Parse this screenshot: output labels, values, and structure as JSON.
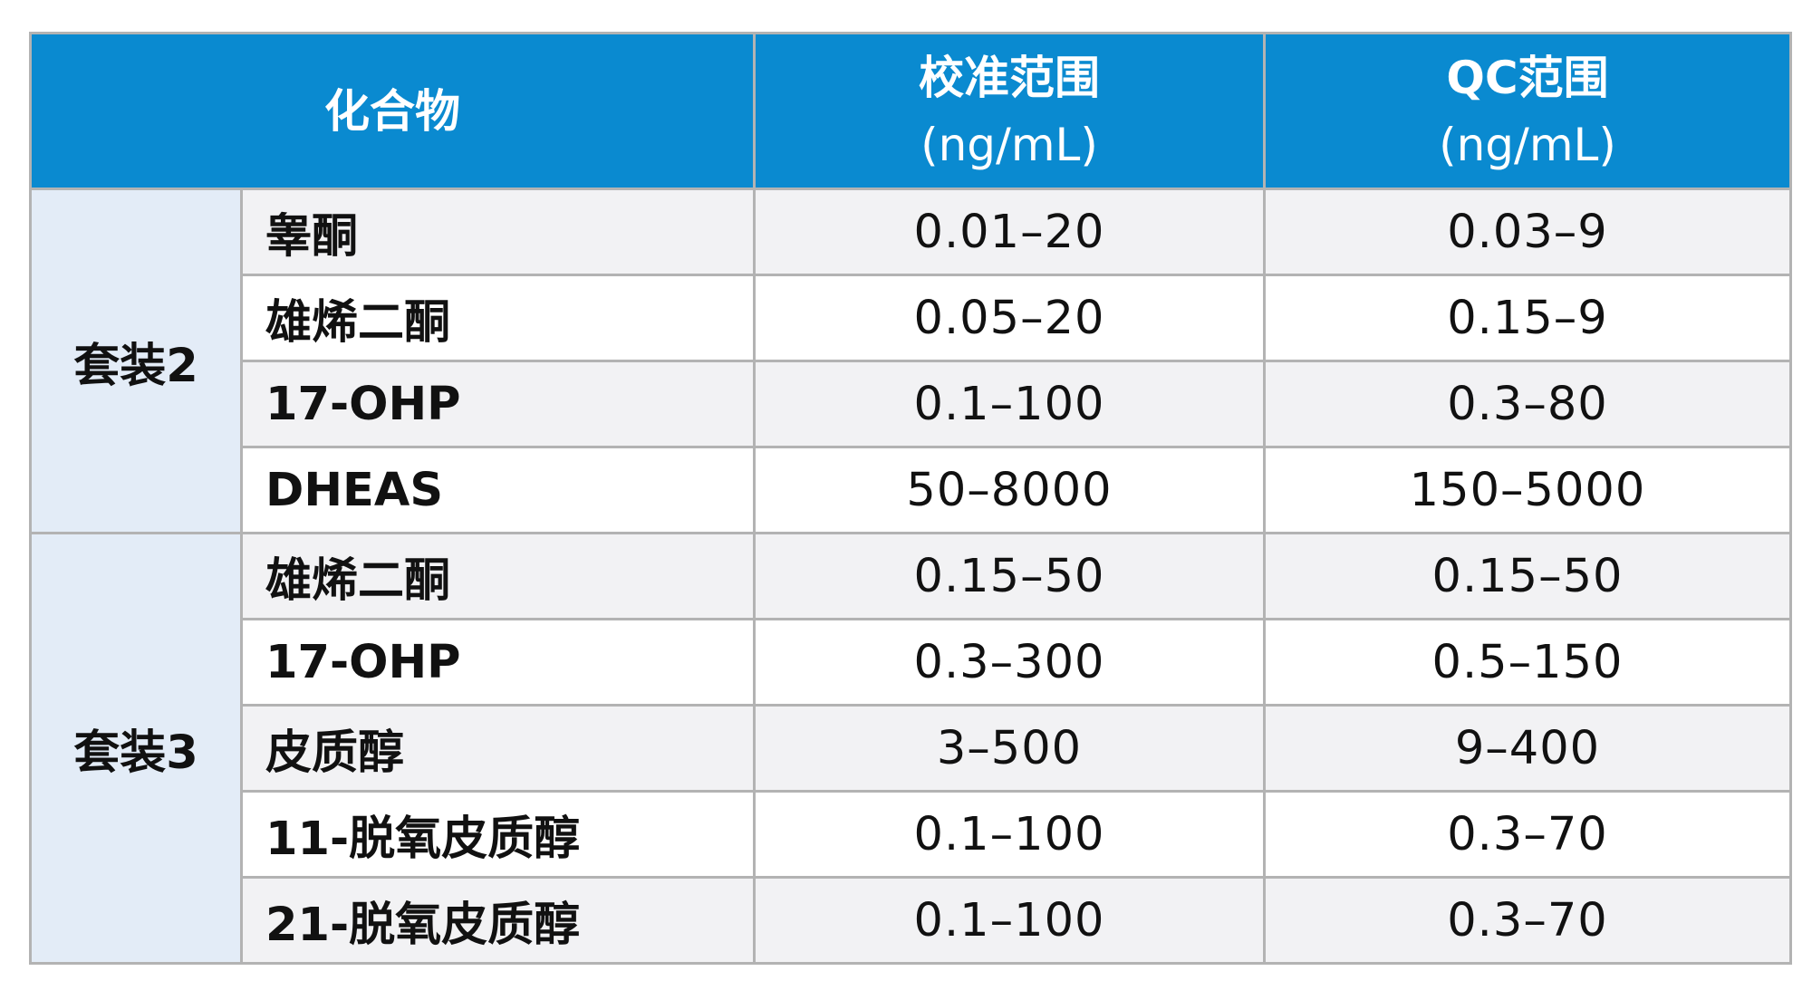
{
  "table": {
    "headers": {
      "compound": "化合物",
      "calibration_title": "校准范围",
      "calibration_unit": "(ng/mL)",
      "qc_title": "QC范围",
      "qc_unit": "(ng/mL)"
    },
    "groups": [
      {
        "kit": "套装2",
        "rows": [
          {
            "compound": "睾酮",
            "calibration": "0.01–20",
            "qc": "0.03–9"
          },
          {
            "compound": "雄烯二酮",
            "calibration": "0.05–20",
            "qc": "0.15–9"
          },
          {
            "compound": "17-OHP",
            "calibration": "0.1–100",
            "qc": "0.3–80"
          },
          {
            "compound": "DHEAS",
            "calibration": "50–8000",
            "qc": "150–5000"
          }
        ]
      },
      {
        "kit": "套装3",
        "rows": [
          {
            "compound": "雄烯二酮",
            "calibration": "0.15–50",
            "qc": "0.15–50"
          },
          {
            "compound": "17-OHP",
            "calibration": "0.3–300",
            "qc": "0.5–150"
          },
          {
            "compound": "皮质醇",
            "calibration": "3–500",
            "qc": "9–400"
          },
          {
            "compound": "11-脱氧皮质醇",
            "calibration": "0.1–100",
            "qc": "0.3–70"
          },
          {
            "compound": "21-脱氧皮质醇",
            "calibration": "0.1–100",
            "qc": "0.3–70"
          }
        ]
      }
    ]
  },
  "colors": {
    "header_background": "#0a8ad0",
    "header_text": "#ffffff",
    "kit_cell_background": "#e3ecf7",
    "row_alternate_background": "#f2f2f4",
    "border": "#b3b3b3"
  }
}
